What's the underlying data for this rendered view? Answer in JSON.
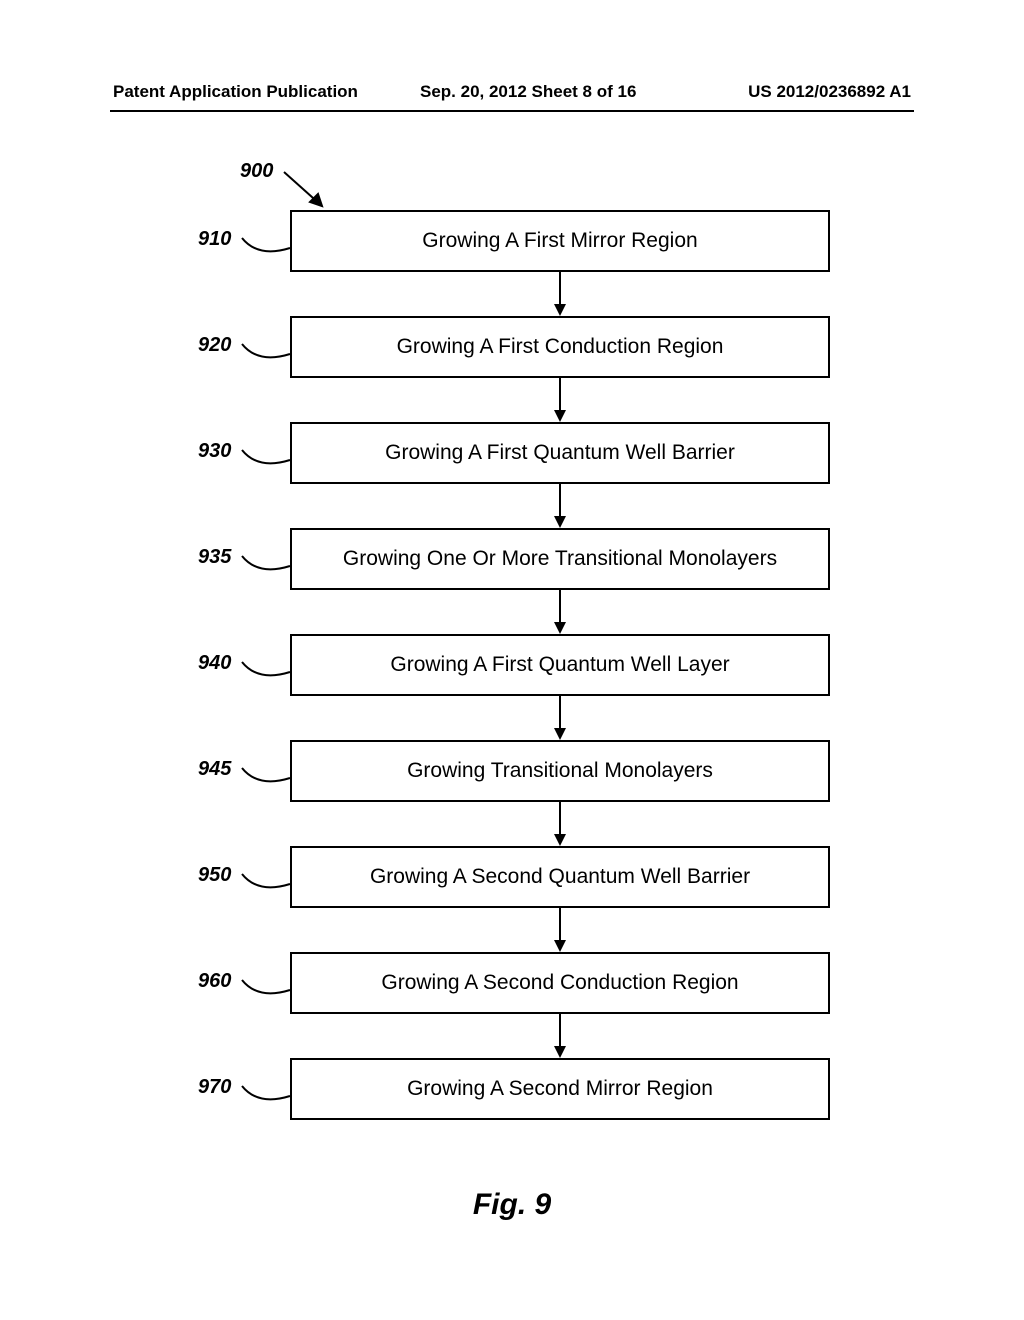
{
  "header": {
    "left": "Patent Application Publication",
    "center": "Sep. 20, 2012  Sheet 8 of 16",
    "right": "US 2012/0236892 A1"
  },
  "flow": {
    "pointer_ref": "900",
    "steps": [
      {
        "ref": "910",
        "text": "Growing A First Mirror Region"
      },
      {
        "ref": "920",
        "text": "Growing A First Conduction Region"
      },
      {
        "ref": "930",
        "text": "Growing A First Quantum Well Barrier"
      },
      {
        "ref": "935",
        "text": "Growing One Or More Transitional Monolayers"
      },
      {
        "ref": "940",
        "text": "Growing A First Quantum Well Layer"
      },
      {
        "ref": "945",
        "text": "Growing Transitional Monolayers"
      },
      {
        "ref": "950",
        "text": "Growing A Second Quantum Well Barrier"
      },
      {
        "ref": "960",
        "text": "Growing A Second Conduction Region"
      },
      {
        "ref": "970",
        "text": "Growing A Second Mirror Region"
      }
    ]
  },
  "caption": "Fig. 9",
  "style": {
    "box_border_color": "#000000",
    "box_bg_color": "#ffffff",
    "arrow_color": "#000000",
    "box_font_size": 21,
    "ref_font_size": 20,
    "header_font_size": 17,
    "caption_font_size": 30
  }
}
